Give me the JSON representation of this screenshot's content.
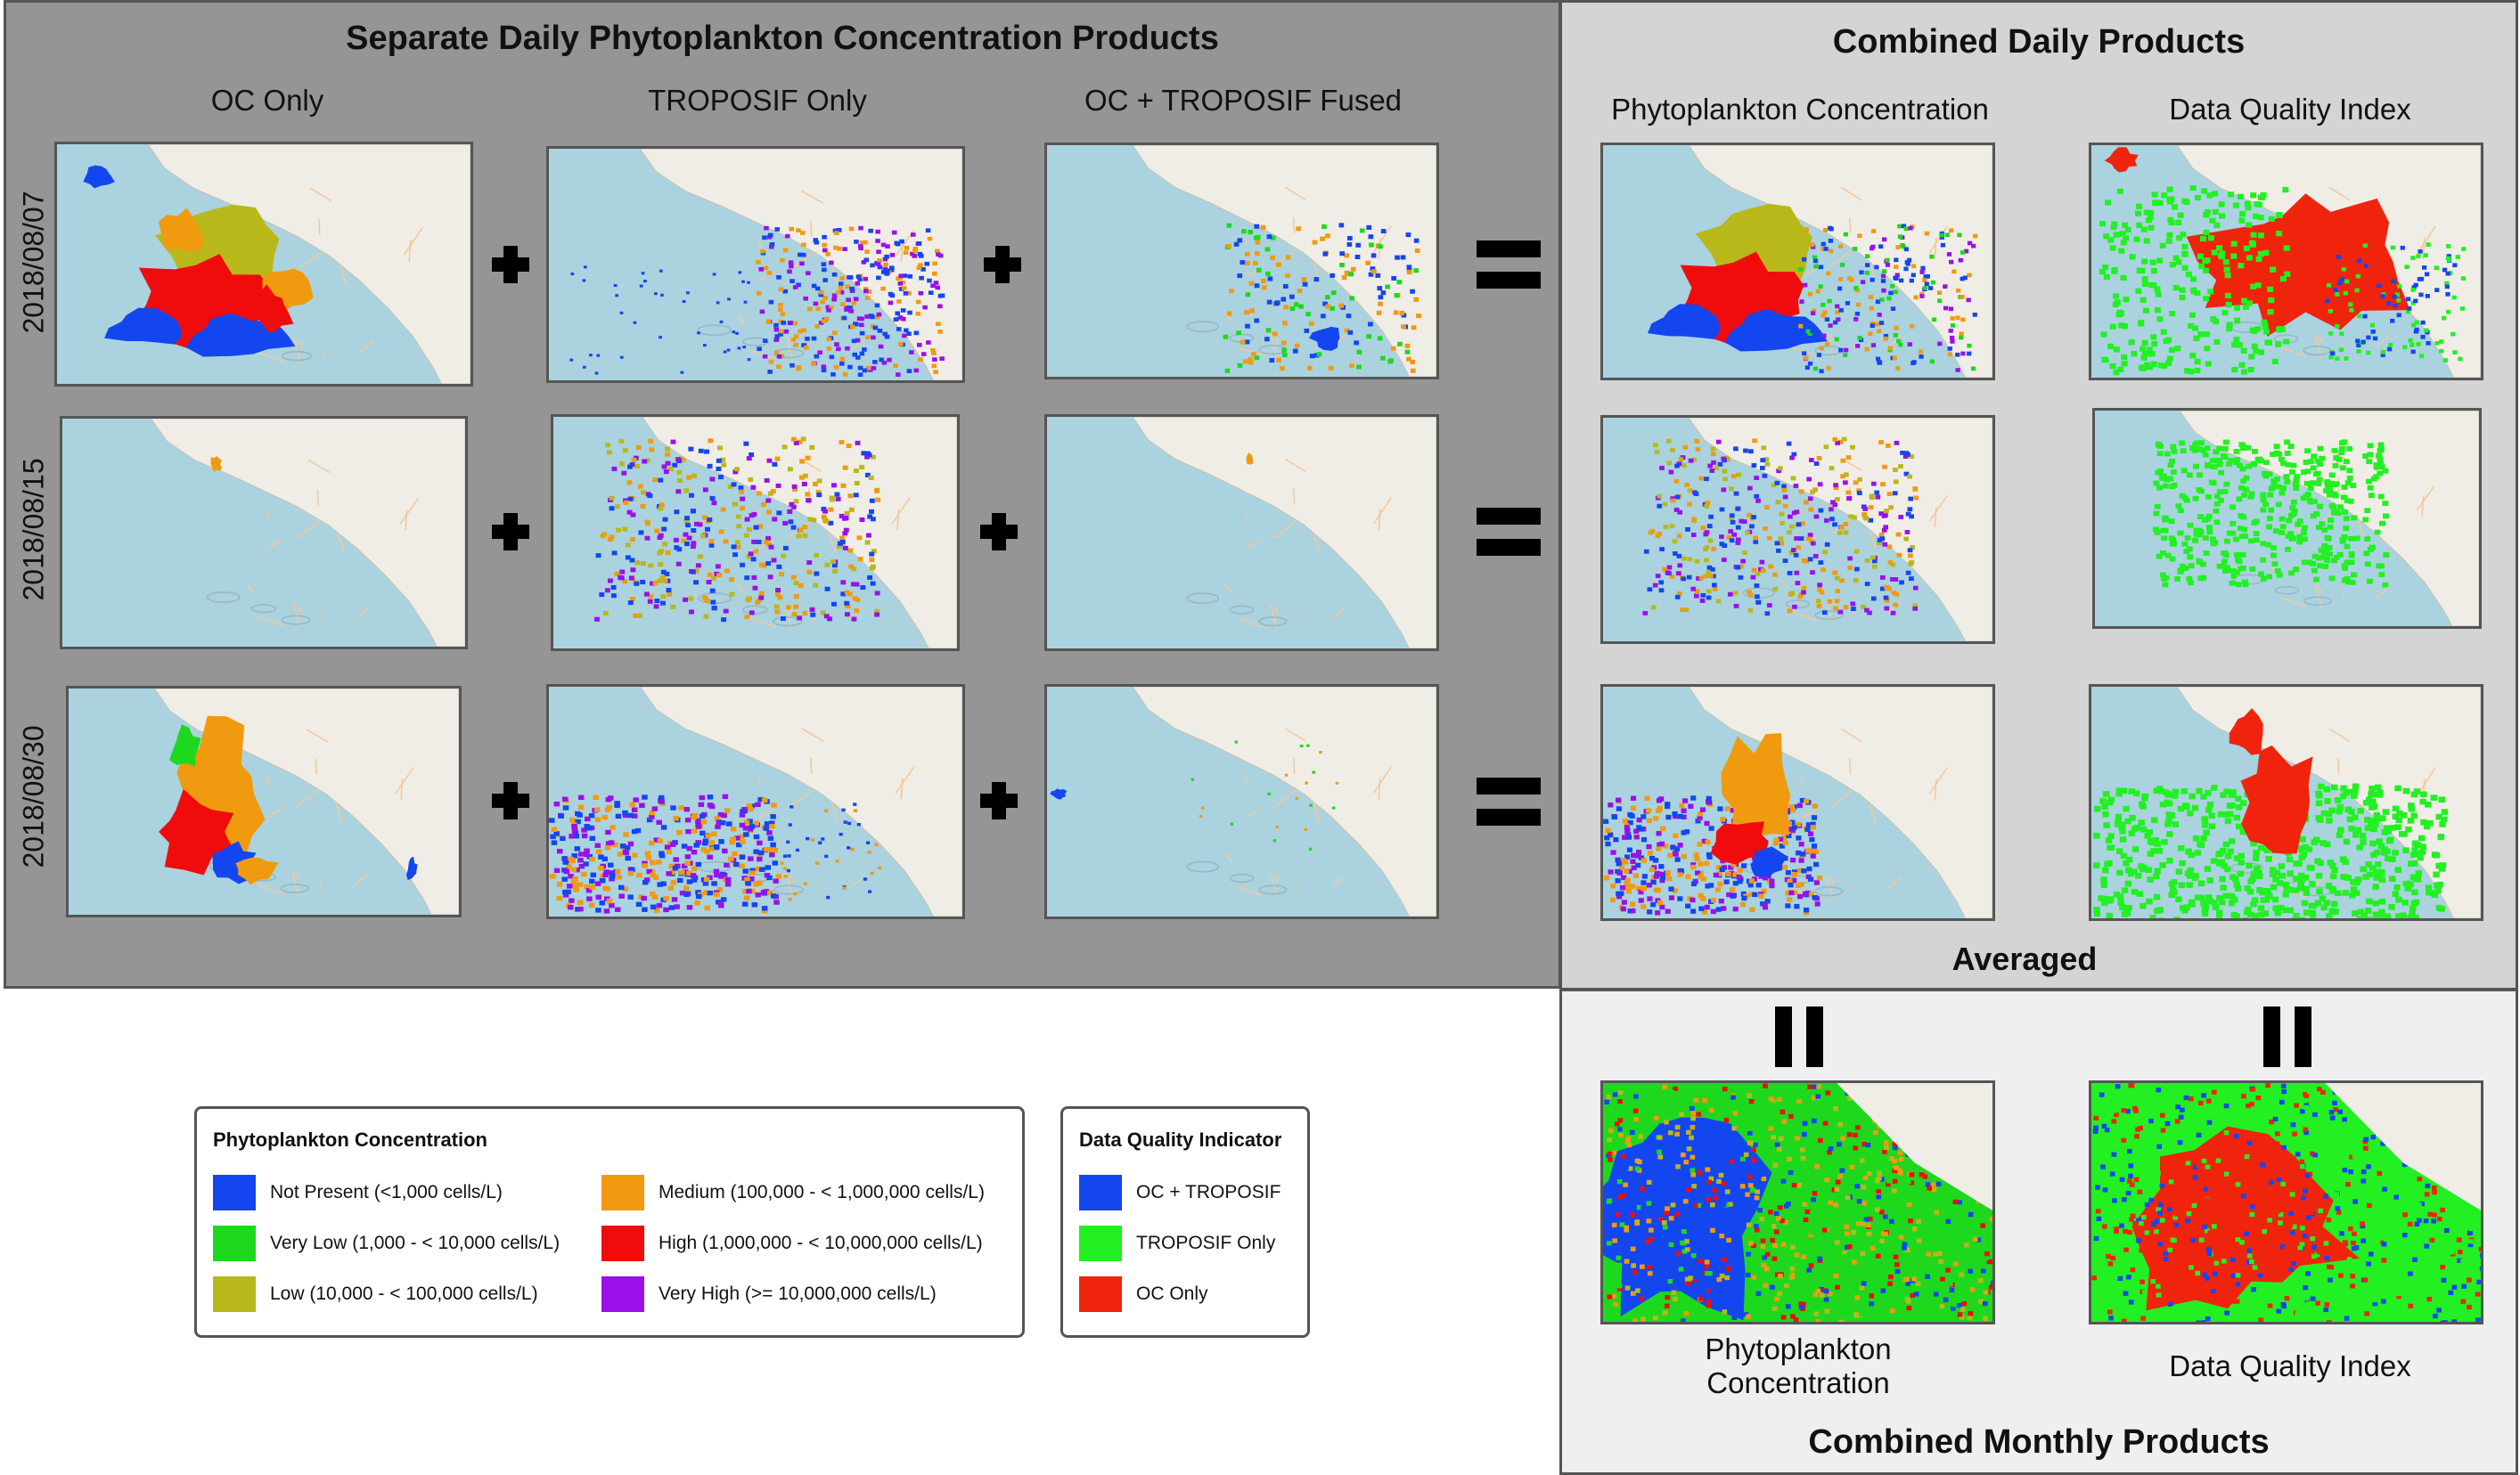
{
  "left_panel": {
    "title": "Separate Daily Phytoplankton Concentration Products",
    "columns": [
      "OC Only",
      "TROPOSIF Only",
      "OC + TROPOSIF Fused"
    ],
    "rows": [
      "2018/08/07",
      "2018/08/15",
      "2018/08/30"
    ]
  },
  "right_top_panel": {
    "title": "Combined Daily Products",
    "columns": [
      "Phytoplankton Concentration",
      "Data Quality Index"
    ],
    "averaged_label": "Averaged"
  },
  "right_bottom_panel": {
    "caption_left": [
      "Phytoplankton",
      "Concentration"
    ],
    "caption_right": "Data Quality Index",
    "title": "Combined Monthly Products"
  },
  "legend_concentration": {
    "title": "Phytoplankton Concentration",
    "items": [
      {
        "label": "Not Present (<1,000 cells/L)",
        "color": "#1446f0"
      },
      {
        "label": "Very Low (1,000 - < 10,000 cells/L)",
        "color": "#1ed81e"
      },
      {
        "label": "Low (10,000 - < 100,000 cells/L)",
        "color": "#b8b81a"
      },
      {
        "label": "Medium (100,000 - < 1,000,000 cells/L)",
        "color": "#f09a10"
      },
      {
        "label": "High (1,000,000 - < 10,000,000 cells/L)",
        "color": "#f00c0c"
      },
      {
        "label": "Very High (>= 10,000,000 cells/L)",
        "color": "#9a10e8"
      }
    ]
  },
  "legend_quality": {
    "title": "Data Quality Indicator",
    "items": [
      {
        "label": "OC + TROPOSIF",
        "color": "#1446f0"
      },
      {
        "label": "TROPOSIF Only",
        "color": "#22f022"
      },
      {
        "label": "OC Only",
        "color": "#f0240c"
      }
    ]
  },
  "map_colors": {
    "ocean": "#aad3df",
    "land": "#f0ede6"
  }
}
